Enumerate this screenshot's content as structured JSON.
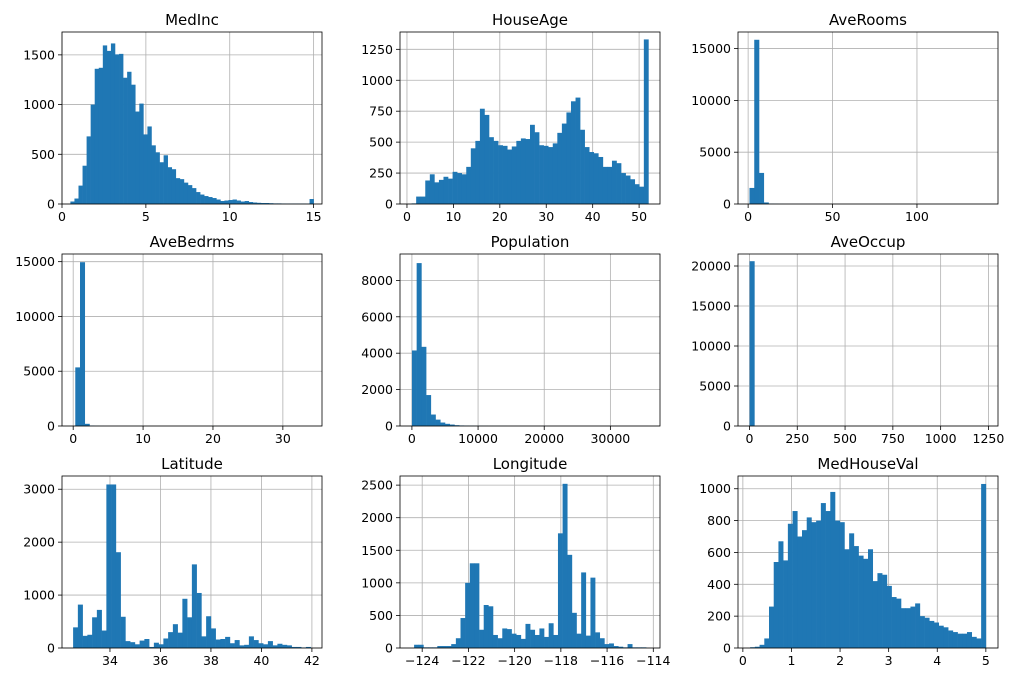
{
  "figure": {
    "background": "#ffffff",
    "bar_color": "#1f77b4",
    "grid_color": "#b0b0b0",
    "axis_color": "#000000"
  },
  "chart_data": [
    {
      "type": "bar",
      "title": "MedInc",
      "xlim": [
        0,
        15.5
      ],
      "ylim": [
        0,
        1730
      ],
      "xticks": [
        0,
        5,
        10,
        15
      ],
      "yticks": [
        0,
        500,
        1000,
        1500
      ],
      "grid": true,
      "bin_range": [
        0.5,
        15.0
      ],
      "values": [
        25,
        55,
        185,
        385,
        680,
        1000,
        1360,
        1370,
        1595,
        1540,
        1615,
        1505,
        1510,
        1270,
        1330,
        1200,
        930,
        1010,
        700,
        780,
        590,
        520,
        420,
        490,
        370,
        350,
        260,
        250,
        215,
        190,
        160,
        120,
        95,
        80,
        70,
        60,
        45,
        30,
        35,
        40,
        45,
        35,
        25,
        30,
        20,
        15,
        12,
        10,
        10,
        8,
        6,
        6,
        5,
        4,
        4,
        4,
        4,
        4,
        3,
        50
      ]
    },
    {
      "type": "bar",
      "title": "HouseAge",
      "xlim": [
        -1.5,
        54.5
      ],
      "ylim": [
        0,
        1390
      ],
      "xticks": [
        0,
        10,
        20,
        30,
        40,
        50
      ],
      "yticks": [
        0,
        250,
        500,
        750,
        1000,
        1250
      ],
      "grid": true,
      "bin_range": [
        1,
        52
      ],
      "values": [
        5,
        60,
        60,
        190,
        240,
        175,
        195,
        220,
        205,
        260,
        250,
        240,
        300,
        450,
        510,
        770,
        720,
        540,
        510,
        475,
        470,
        440,
        465,
        510,
        530,
        525,
        640,
        580,
        475,
        470,
        460,
        490,
        575,
        650,
        740,
        830,
        860,
        600,
        460,
        420,
        410,
        380,
        300,
        300,
        350,
        330,
        250,
        230,
        200,
        160,
        140,
        1330
      ]
    },
    {
      "type": "bar",
      "title": "AveRooms",
      "xlim": [
        -6,
        148
      ],
      "ylim": [
        0,
        16600
      ],
      "xticks": [
        0,
        50,
        100
      ],
      "yticks": [
        0,
        5000,
        10000,
        15000
      ],
      "grid": true,
      "bin_range": [
        0.8,
        141.9
      ],
      "values": [
        1550,
        15850,
        3000,
        150,
        30,
        20,
        10,
        5,
        5,
        5,
        5,
        5,
        3,
        3,
        3,
        2,
        2,
        2,
        2,
        1,
        1,
        1,
        1,
        1,
        1,
        1,
        1,
        1,
        1,
        1,
        1,
        1,
        1,
        1,
        1,
        1,
        1,
        1,
        1,
        1,
        1,
        1,
        1,
        1,
        1,
        1,
        1,
        1,
        1,
        1
      ]
    },
    {
      "type": "bar",
      "title": "AveBedrms",
      "xlim": [
        -1.6,
        35.6
      ],
      "ylim": [
        0,
        15700
      ],
      "xticks": [
        0,
        10,
        20,
        30
      ],
      "yticks": [
        0,
        5000,
        10000,
        15000
      ],
      "grid": true,
      "bin_range": [
        0.3,
        34.1
      ],
      "values": [
        5350,
        14950,
        200,
        40,
        20,
        10,
        5,
        5,
        5,
        3,
        3,
        2,
        2,
        2,
        1,
        1,
        1,
        1,
        1,
        1,
        1,
        1,
        1,
        1,
        1,
        1,
        1,
        1,
        1,
        1,
        1,
        1,
        1,
        1,
        1,
        1,
        1,
        1,
        1,
        1,
        1,
        1,
        1,
        1,
        1,
        1,
        1,
        1,
        1,
        1
      ]
    },
    {
      "type": "bar",
      "title": "Population",
      "xlim": [
        -1800,
        37500
      ],
      "ylim": [
        0,
        9450
      ],
      "xticks": [
        0,
        10000,
        20000,
        30000
      ],
      "yticks": [
        0,
        2000,
        4000,
        6000,
        8000
      ],
      "grid": true,
      "bin_range": [
        3,
        35682
      ],
      "values": [
        4150,
        8950,
        4350,
        1700,
        630,
        350,
        190,
        120,
        80,
        45,
        30,
        20,
        15,
        10,
        10,
        8,
        6,
        5,
        4,
        4,
        3,
        3,
        3,
        2,
        2,
        2,
        2,
        2,
        2,
        2,
        2,
        2,
        2,
        2,
        2,
        2,
        2,
        2,
        2,
        2,
        2,
        2,
        2,
        2,
        2,
        2,
        2,
        2,
        2,
        2
      ]
    },
    {
      "type": "bar",
      "title": "AveOccup",
      "xlim": [
        -60,
        1300
      ],
      "ylim": [
        0,
        21500
      ],
      "xticks": [
        0,
        250,
        500,
        750,
        1000,
        1250
      ],
      "yticks": [
        0,
        5000,
        10000,
        15000,
        20000
      ],
      "grid": true,
      "bin_range": [
        0.7,
        1243.3
      ],
      "values": [
        20600,
        10,
        5,
        3,
        2,
        1,
        1,
        1,
        1,
        1,
        1,
        1,
        1,
        1,
        1,
        1,
        1,
        1,
        1,
        1,
        1,
        1,
        1,
        1,
        1,
        1,
        1,
        1,
        1,
        1,
        1,
        1,
        1,
        1,
        1,
        1,
        1,
        1,
        1,
        1,
        1,
        1,
        1,
        1,
        1,
        1,
        1,
        1,
        1,
        1
      ]
    },
    {
      "type": "bar",
      "title": "Latitude",
      "xlim": [
        32.1,
        42.4
      ],
      "ylim": [
        0,
        3250
      ],
      "xticks": [
        34,
        36,
        38,
        40,
        42
      ],
      "yticks": [
        0,
        1000,
        2000,
        3000
      ],
      "grid": true,
      "bin_range": [
        32.54,
        41.95
      ],
      "values": [
        390,
        820,
        230,
        250,
        580,
        720,
        330,
        3090,
        3090,
        1810,
        590,
        130,
        110,
        70,
        140,
        170,
        20,
        100,
        70,
        180,
        300,
        450,
        290,
        930,
        580,
        1580,
        1040,
        220,
        600,
        370,
        160,
        170,
        210,
        90,
        150,
        50,
        60,
        220,
        150,
        90,
        70,
        130,
        50,
        80,
        60,
        50,
        20,
        20,
        10,
        20
      ]
    },
    {
      "type": "bar",
      "title": "Longitude",
      "xlim": [
        -124.96,
        -113.71
      ],
      "ylim": [
        0,
        2640
      ],
      "xticks": [
        -124,
        -122,
        -120,
        -118,
        -116,
        -114
      ],
      "yticks": [
        0,
        500,
        1000,
        1500,
        2000,
        2500
      ],
      "grid": true,
      "bin_range": [
        -124.35,
        -114.31
      ],
      "values": [
        50,
        50,
        10,
        10,
        10,
        30,
        30,
        30,
        60,
        150,
        460,
        1000,
        1300,
        1300,
        280,
        660,
        640,
        200,
        150,
        300,
        290,
        220,
        200,
        140,
        370,
        280,
        200,
        300,
        170,
        380,
        200,
        1760,
        2520,
        1430,
        540,
        220,
        1160,
        190,
        1080,
        240,
        150,
        60,
        70,
        30,
        20,
        10,
        60,
        10,
        10,
        10
      ]
    },
    {
      "type": "bar",
      "title": "MedHouseVal",
      "xlim": [
        -0.1,
        5.25
      ],
      "ylim": [
        0,
        1080
      ],
      "xticks": [
        0,
        1,
        2,
        3,
        4,
        5
      ],
      "yticks": [
        0,
        200,
        400,
        600,
        800,
        1000
      ],
      "grid": true,
      "bin_range": [
        0.15,
        5.0
      ],
      "values": [
        5,
        8,
        20,
        60,
        260,
        540,
        670,
        550,
        780,
        860,
        700,
        740,
        820,
        790,
        800,
        910,
        860,
        980,
        800,
        790,
        620,
        720,
        640,
        580,
        560,
        620,
        420,
        470,
        460,
        390,
        320,
        310,
        250,
        250,
        260,
        280,
        200,
        190,
        170,
        160,
        140,
        130,
        110,
        100,
        90,
        90,
        100,
        70,
        60,
        1030
      ]
    }
  ]
}
